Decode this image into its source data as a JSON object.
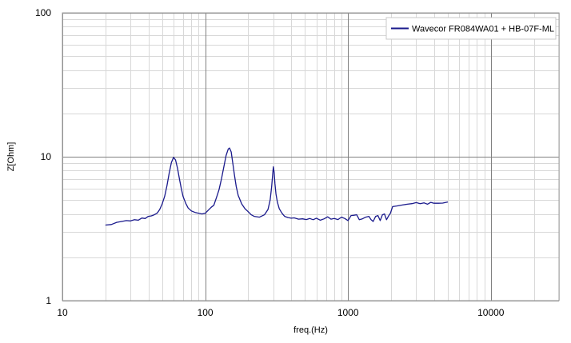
{
  "chart_data": {
    "type": "line",
    "xscale": "log",
    "yscale": "log",
    "xlim": [
      10,
      30000
    ],
    "ylim": [
      1,
      100
    ],
    "xlabel": "freq.(Hz)",
    "ylabel": "Z[Ohm]",
    "x_ticks": [
      {
        "value": 10,
        "label": "10"
      },
      {
        "value": 100,
        "label": "100"
      },
      {
        "value": 1000,
        "label": "1000"
      },
      {
        "value": 10000,
        "label": "10000"
      }
    ],
    "y_ticks": [
      {
        "value": 1,
        "label": "1"
      },
      {
        "value": 10,
        "label": "10"
      },
      {
        "value": 100,
        "label": "100"
      }
    ],
    "grid": true,
    "legend_position": "top-right",
    "series": [
      {
        "name": "Wavecor FR084WA01 + HB-07F-ML",
        "color": "#1a1a8c",
        "points": [
          [
            20,
            3.35
          ],
          [
            22,
            3.38
          ],
          [
            24,
            3.5
          ],
          [
            26,
            3.55
          ],
          [
            28,
            3.6
          ],
          [
            30,
            3.58
          ],
          [
            32,
            3.65
          ],
          [
            34,
            3.62
          ],
          [
            36,
            3.75
          ],
          [
            38,
            3.72
          ],
          [
            40,
            3.85
          ],
          [
            42,
            3.88
          ],
          [
            44,
            3.95
          ],
          [
            46,
            4.05
          ],
          [
            48,
            4.3
          ],
          [
            50,
            4.7
          ],
          [
            52,
            5.3
          ],
          [
            54,
            6.3
          ],
          [
            56,
            7.7
          ],
          [
            58,
            9.1
          ],
          [
            60,
            9.9
          ],
          [
            62,
            9.5
          ],
          [
            64,
            8.3
          ],
          [
            66,
            7.0
          ],
          [
            68,
            6.0
          ],
          [
            70,
            5.3
          ],
          [
            73,
            4.75
          ],
          [
            76,
            4.4
          ],
          [
            80,
            4.2
          ],
          [
            85,
            4.1
          ],
          [
            90,
            4.05
          ],
          [
            95,
            4.0
          ],
          [
            100,
            4.05
          ],
          [
            105,
            4.25
          ],
          [
            110,
            4.45
          ],
          [
            115,
            4.6
          ],
          [
            120,
            5.2
          ],
          [
            125,
            5.9
          ],
          [
            130,
            7.0
          ],
          [
            135,
            8.5
          ],
          [
            140,
            10.2
          ],
          [
            145,
            11.3
          ],
          [
            148,
            11.5
          ],
          [
            152,
            10.8
          ],
          [
            156,
            9.0
          ],
          [
            160,
            7.5
          ],
          [
            165,
            6.2
          ],
          [
            170,
            5.4
          ],
          [
            180,
            4.7
          ],
          [
            190,
            4.35
          ],
          [
            200,
            4.15
          ],
          [
            210,
            3.95
          ],
          [
            220,
            3.85
          ],
          [
            240,
            3.8
          ],
          [
            260,
            3.95
          ],
          [
            275,
            4.3
          ],
          [
            285,
            5.0
          ],
          [
            292,
            6.2
          ],
          [
            297,
            7.6
          ],
          [
            300,
            8.5
          ],
          [
            304,
            7.8
          ],
          [
            308,
            6.5
          ],
          [
            313,
            5.5
          ],
          [
            320,
            4.85
          ],
          [
            330,
            4.35
          ],
          [
            345,
            4.05
          ],
          [
            360,
            3.85
          ],
          [
            380,
            3.78
          ],
          [
            400,
            3.74
          ],
          [
            420,
            3.76
          ],
          [
            450,
            3.68
          ],
          [
            480,
            3.7
          ],
          [
            510,
            3.66
          ],
          [
            540,
            3.72
          ],
          [
            570,
            3.65
          ],
          [
            600,
            3.74
          ],
          [
            640,
            3.62
          ],
          [
            680,
            3.7
          ],
          [
            720,
            3.82
          ],
          [
            760,
            3.68
          ],
          [
            800,
            3.72
          ],
          [
            850,
            3.66
          ],
          [
            900,
            3.8
          ],
          [
            950,
            3.72
          ],
          [
            1000,
            3.6
          ],
          [
            1050,
            3.9
          ],
          [
            1100,
            3.92
          ],
          [
            1150,
            3.95
          ],
          [
            1200,
            3.65
          ],
          [
            1260,
            3.7
          ],
          [
            1330,
            3.8
          ],
          [
            1400,
            3.85
          ],
          [
            1450,
            3.65
          ],
          [
            1500,
            3.55
          ],
          [
            1560,
            3.85
          ],
          [
            1620,
            3.9
          ],
          [
            1680,
            3.6
          ],
          [
            1740,
            3.95
          ],
          [
            1800,
            4.0
          ],
          [
            1860,
            3.65
          ],
          [
            1930,
            3.9
          ],
          [
            1980,
            4.05
          ],
          [
            2050,
            4.5
          ],
          [
            2200,
            4.55
          ],
          [
            2400,
            4.62
          ],
          [
            2600,
            4.68
          ],
          [
            2800,
            4.72
          ],
          [
            3000,
            4.8
          ],
          [
            3200,
            4.72
          ],
          [
            3400,
            4.78
          ],
          [
            3600,
            4.68
          ],
          [
            3800,
            4.82
          ],
          [
            4000,
            4.75
          ],
          [
            4300,
            4.75
          ],
          [
            4600,
            4.76
          ],
          [
            5000,
            4.85
          ]
        ]
      }
    ]
  }
}
